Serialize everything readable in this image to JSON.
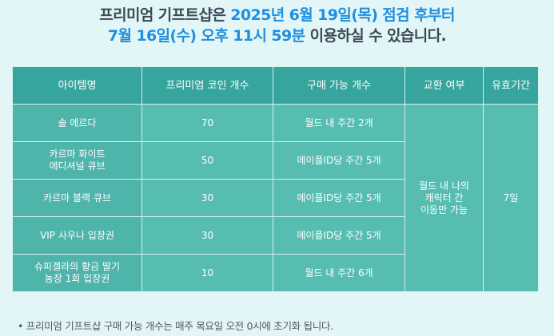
{
  "headline": {
    "l1_a": "프리미엄 기프트샵은 ",
    "l1_b": "2025년 6월 19일(목) 점검 후부터",
    "l2_a": "7월 16일(수) 오후 11시 59분",
    "l2_b": " 이용하실 수 있습니다."
  },
  "table": {
    "headers": [
      "아이템명",
      "프리미엄 코인 개수",
      "구매 가능 개수",
      "교환 여부",
      "유효기간"
    ],
    "rows": [
      {
        "name": "솔 에르다",
        "coins": "70",
        "limit": "월드 내 주간 2개"
      },
      {
        "name": "카르마 화이트\n에디셔널 큐브",
        "coins": "50",
        "limit": "메이플ID당 주간 5개"
      },
      {
        "name": "카르마 블랙 큐브",
        "coins": "30",
        "limit": "메이플ID당 주간 5개"
      },
      {
        "name": "VIP 사우나 입장권",
        "coins": "30",
        "limit": "메이플ID당 주간 5개"
      },
      {
        "name": "슈피겔라의 황금 딸기\n농장 1회 입장권",
        "coins": "10",
        "limit": "월드 내 주간 6개"
      }
    ],
    "exchange": "월드 내 나의\n캐릭터 간\n이동만 가능",
    "validity": "7일"
  },
  "footnote": "• 프리미엄 기프트샵 구매 가능 개수는 매주 목요일 오전 0시에 초기화 됩니다."
}
